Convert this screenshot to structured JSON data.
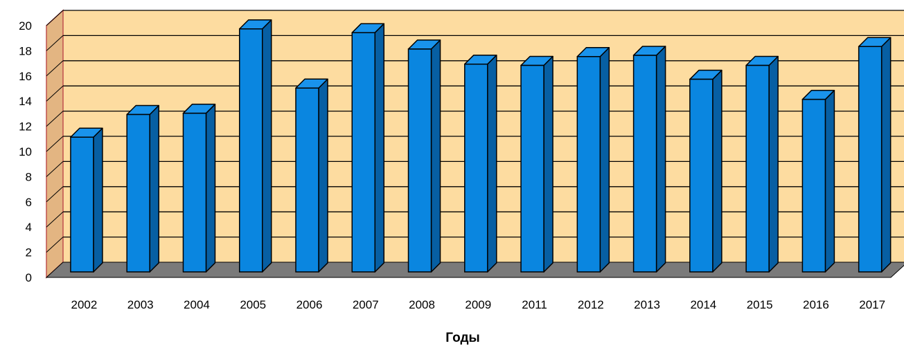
{
  "chart_data": {
    "type": "bar",
    "title": "",
    "xlabel": "Годы",
    "ylabel": "",
    "ylim": [
      0,
      20
    ],
    "yticks": [
      0,
      2,
      4,
      6,
      8,
      10,
      12,
      14,
      16,
      18,
      20
    ],
    "grid": true,
    "legend": "none",
    "categories": [
      "2002",
      "2003",
      "2004",
      "2005",
      "2006",
      "2007",
      "2008",
      "2009",
      "2011",
      "2012",
      "2013",
      "2014",
      "2015",
      "2016",
      "2017"
    ],
    "series": [
      {
        "values": [
          10.7,
          12.5,
          12.6,
          19.3,
          14.6,
          19.0,
          17.7,
          16.5,
          16.4,
          17.1,
          17.2,
          15.3,
          16.4,
          13.7,
          17.9
        ],
        "color": "#0a86e0"
      }
    ],
    "colors": {
      "back_wall": "#fddca0",
      "side_wall": "#e3b582",
      "floor": "#7a7a7a",
      "bar_front": "#0a86e0",
      "bar_top": "#1993ec",
      "bar_side": "#075fa3"
    }
  }
}
